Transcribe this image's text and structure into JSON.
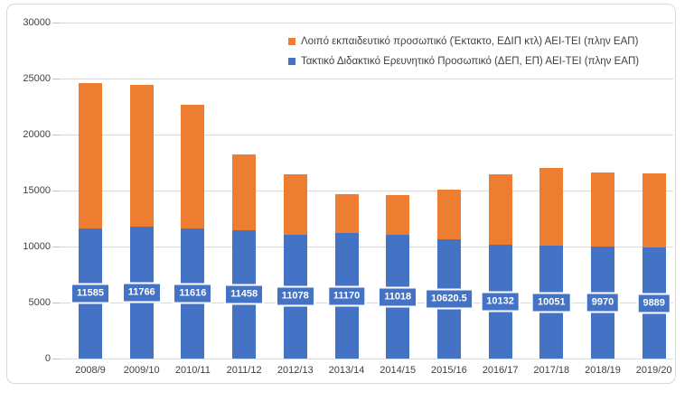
{
  "chart_data": {
    "type": "bar",
    "stacked": true,
    "title": "",
    "xlabel": "",
    "ylabel": "",
    "categories": [
      "2008/9",
      "2009/10",
      "2010/11",
      "2011/12",
      "2012/13",
      "2013/14",
      "2014/15",
      "2015/16",
      "2016/17",
      "2017/18",
      "2018/19",
      "2019/20"
    ],
    "series": [
      {
        "name": "Τακτικό Διδακτικό Ερευνητικό Προσωπικό (ΔΕΠ, ΕΠ) ΑΕΙ-ΤΕΙ (πλην ΕΑΠ)",
        "color": "#4472C4",
        "values": [
          11585,
          11766,
          11616,
          11458,
          11078,
          11170,
          11018,
          10620.5,
          10132,
          10051,
          9970,
          9889
        ],
        "data_labels": [
          "11585",
          "11766",
          "11616",
          "11458",
          "11078",
          "11170",
          "11018",
          "10620.5",
          "10132",
          "10051",
          "9970",
          "9889"
        ]
      },
      {
        "name": "Λοιπό εκπαιδευτικό προσωπικό (Έκτακτο, ΕΔΙΠ κτλ) ΑΕΙ-ΤΕΙ (πλην ΕΑΠ)",
        "color": "#ED7D31",
        "values": [
          13030,
          12650,
          11010,
          6800,
          5390,
          3540,
          3550,
          4490,
          6340,
          6930,
          6660,
          6660
        ]
      }
    ],
    "totals_approx": [
      24615,
      24416,
      22626,
      18258,
      16468,
      14710,
      14568,
      15110.5,
      16472,
      16981,
      16630,
      16549
    ],
    "ylim": [
      0,
      30000
    ],
    "yticks": [
      0,
      5000,
      10000,
      15000,
      20000,
      25000,
      30000
    ],
    "ytick_labels": [
      "0",
      "5000",
      "10000",
      "15000",
      "20000",
      "25000",
      "30000"
    ],
    "grid": true,
    "legend_position": "top-right",
    "legend_order": [
      1,
      0
    ]
  },
  "colors": {
    "grid": "#D9D9D9",
    "tick": "#BFBFBF",
    "axis_text": "#404040",
    "frame_border": "#D9D9D9",
    "data_label_bg": "#4472C4",
    "data_label_text": "#FFFFFF"
  }
}
